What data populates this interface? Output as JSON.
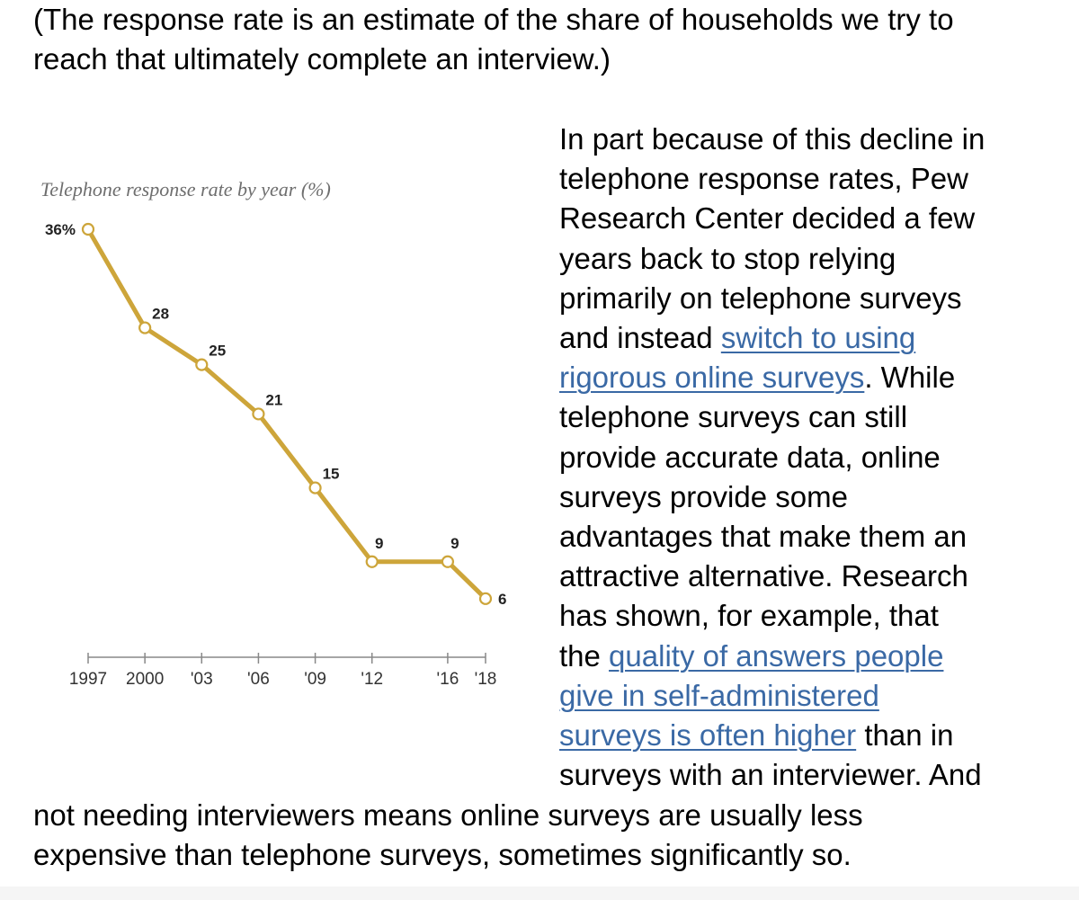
{
  "intro": {
    "lines": [
      "(The response rate is an estimate of the share of households we try to",
      "reach that ultimately complete an interview.)"
    ]
  },
  "side_text": {
    "lines": [
      {
        "parts": [
          {
            "text": "In part because of this decline in"
          }
        ]
      },
      {
        "parts": [
          {
            "text": "telephone response rates, Pew"
          }
        ]
      },
      {
        "parts": [
          {
            "text": "Research Center decided a few"
          }
        ]
      },
      {
        "parts": [
          {
            "text": "years back to stop relying"
          }
        ]
      },
      {
        "parts": [
          {
            "text": "primarily on telephone surveys"
          }
        ]
      },
      {
        "parts": [
          {
            "text": "and instead "
          },
          {
            "text": "switch to using",
            "link": true
          }
        ]
      },
      {
        "parts": [
          {
            "text": "rigorous online surveys",
            "link": true
          },
          {
            "text": ". While"
          }
        ]
      },
      {
        "parts": [
          {
            "text": "telephone surveys can still"
          }
        ]
      },
      {
        "parts": [
          {
            "text": "provide accurate data, online"
          }
        ]
      },
      {
        "parts": [
          {
            "text": "surveys provide some"
          }
        ]
      },
      {
        "parts": [
          {
            "text": "advantages that make them an"
          }
        ]
      },
      {
        "parts": [
          {
            "text": "attractive alternative. Research"
          }
        ]
      },
      {
        "parts": [
          {
            "text": "has shown, for example, that"
          }
        ]
      },
      {
        "parts": [
          {
            "text": "the "
          },
          {
            "text": "quality of answers people",
            "link": true
          }
        ]
      },
      {
        "parts": [
          {
            "text": "give in self-administered",
            "link": true
          }
        ]
      },
      {
        "parts": [
          {
            "text": "surveys is often higher",
            "link": true
          },
          {
            "text": " than in"
          }
        ]
      },
      {
        "parts": [
          {
            "text": "surveys with an interviewer. And"
          }
        ]
      }
    ]
  },
  "bottom": {
    "lines": [
      "not needing interviewers means online surveys are usually less",
      "expensive than telephone surveys, sometimes significantly so."
    ]
  },
  "colors": {
    "line": "#cda53a",
    "link": "#3a69a5",
    "axis": "#888888"
  },
  "chart_data": {
    "type": "line",
    "title": "Telephone response rate by year (%)",
    "xlabel": "",
    "ylabel": "",
    "x": [
      1997,
      2000,
      2003,
      2006,
      2009,
      2012,
      2016,
      2018
    ],
    "xlim": [
      1997,
      2018
    ],
    "ylim": [
      0,
      36
    ],
    "series": [
      {
        "values": [
          36,
          28,
          25,
          21,
          15,
          9,
          9,
          6
        ],
        "labels": [
          "36%",
          "28",
          "25",
          "21",
          "15",
          "9",
          "9",
          "6"
        ]
      }
    ],
    "ticks": [
      1997,
      2000,
      2003,
      2006,
      2009,
      2012,
      2016,
      2018
    ],
    "tick_labels": [
      "1997",
      "2000",
      "'03",
      "'06",
      "'09",
      "'12",
      "'16",
      "'18"
    ],
    "grid": false,
    "legend": "none"
  }
}
